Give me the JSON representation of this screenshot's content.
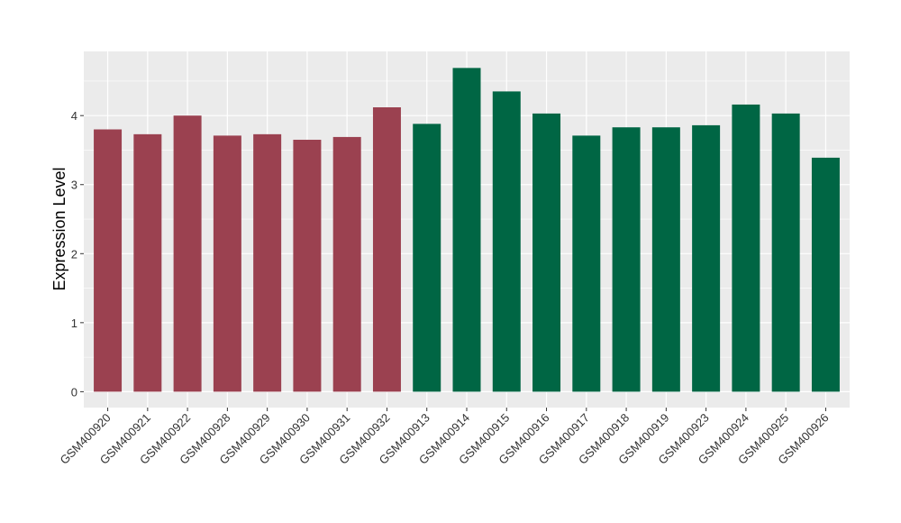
{
  "chart_data": {
    "type": "bar",
    "title": "",
    "xlabel": "",
    "ylabel": "Expression Level",
    "ylim": [
      -0.23,
      4.93
    ],
    "yticks": [
      0,
      1,
      2,
      3,
      4
    ],
    "grid": true,
    "legend": "none",
    "categories": [
      "GSM400920",
      "GSM400921",
      "GSM400922",
      "GSM400928",
      "GSM400929",
      "GSM400930",
      "GSM400931",
      "GSM400932",
      "GSM400913",
      "GSM400914",
      "GSM400915",
      "GSM400916",
      "GSM400917",
      "GSM400918",
      "GSM400919",
      "GSM400923",
      "GSM400924",
      "GSM400925",
      "GSM400926"
    ],
    "values": [
      3.8,
      3.73,
      4.0,
      3.71,
      3.73,
      3.65,
      3.69,
      4.12,
      3.88,
      4.69,
      4.35,
      4.03,
      3.71,
      3.83,
      3.83,
      3.86,
      4.16,
      4.03,
      3.39
    ],
    "groups": [
      0,
      0,
      0,
      0,
      0,
      0,
      0,
      0,
      1,
      1,
      1,
      1,
      1,
      1,
      1,
      1,
      1,
      1,
      1
    ],
    "colors": [
      "#9b4150",
      "#006644"
    ]
  }
}
